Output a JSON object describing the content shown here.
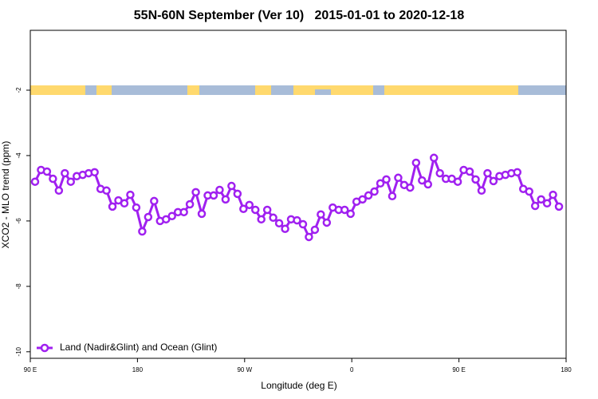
{
  "chart_data": {
    "type": "line",
    "title": "55N-60N September (Ver 10)   2015-01-01 to 2020-12-18",
    "xlabel": "Longitude (deg E)",
    "ylabel": "XCO2 - MLO trend (ppm)",
    "x": [
      94,
      99,
      104,
      109,
      114,
      119,
      124,
      129,
      134,
      139,
      144,
      149,
      154,
      159,
      164,
      169,
      174,
      179,
      184,
      189,
      194,
      199,
      204,
      209,
      214,
      219,
      224,
      229,
      234,
      239,
      244,
      249,
      254,
      259,
      264,
      269,
      274,
      279,
      284,
      289,
      294,
      299,
      304,
      309,
      314,
      319,
      324,
      329,
      334,
      339,
      344,
      349,
      354,
      359,
      364,
      369,
      374,
      379,
      384,
      389,
      394,
      399,
      404,
      409,
      414,
      419,
      424,
      429,
      434,
      439,
      444,
      449,
      454,
      459,
      464,
      469,
      474,
      479,
      484,
      489,
      494,
      499,
      504,
      509,
      514,
      519,
      524,
      529,
      534
    ],
    "series": [
      {
        "name": "Land (Nadir&Glint) and Ocean (Glint)",
        "color": "#a020f0",
        "values": [
          -4.8,
          -4.44,
          -4.49,
          -4.71,
          -5.07,
          -4.54,
          -4.8,
          -4.63,
          -4.59,
          -4.54,
          -4.51,
          -5.02,
          -5.07,
          -5.56,
          -5.37,
          -5.46,
          -5.2,
          -5.59,
          -6.32,
          -5.88,
          -5.39,
          -6.0,
          -5.95,
          -5.85,
          -5.73,
          -5.73,
          -5.49,
          -5.12,
          -5.78,
          -5.22,
          -5.22,
          -5.05,
          -5.34,
          -4.93,
          -5.17,
          -5.63,
          -5.51,
          -5.66,
          -5.95,
          -5.66,
          -5.9,
          -6.07,
          -6.24,
          -5.95,
          -5.98,
          -6.1,
          -6.49,
          -6.27,
          -5.8,
          -6.05,
          -5.59,
          -5.66,
          -5.66,
          -5.78,
          -5.41,
          -5.34,
          -5.22,
          -5.1,
          -4.85,
          -4.73,
          -5.24,
          -4.68,
          -4.9,
          -4.98,
          -4.22,
          -4.76,
          -4.88,
          -4.07,
          -4.54,
          -4.71,
          -4.71,
          -4.8,
          -4.44,
          -4.49,
          -4.73,
          -5.07,
          -4.54,
          -4.78,
          -4.63,
          -4.59,
          -4.54,
          -4.51,
          -5.02,
          -5.1,
          -5.54,
          -5.34,
          -5.46,
          -5.2,
          -5.56
        ]
      }
    ],
    "xlim": [
      90,
      540
    ],
    "xticks": [
      {
        "value": 90,
        "label": "90 E"
      },
      180,
      {
        "value": 270,
        "label": "90 W"
      },
      {
        "value": 360,
        "label": "0"
      },
      {
        "value": 450,
        "label": "90 E"
      },
      {
        "value": 540,
        "label": "180"
      }
    ],
    "ylim": [
      -10.2,
      -0.17
    ],
    "yticks": [
      -10,
      -8,
      -6,
      -4,
      -2
    ],
    "legend": "bottom-left"
  }
}
